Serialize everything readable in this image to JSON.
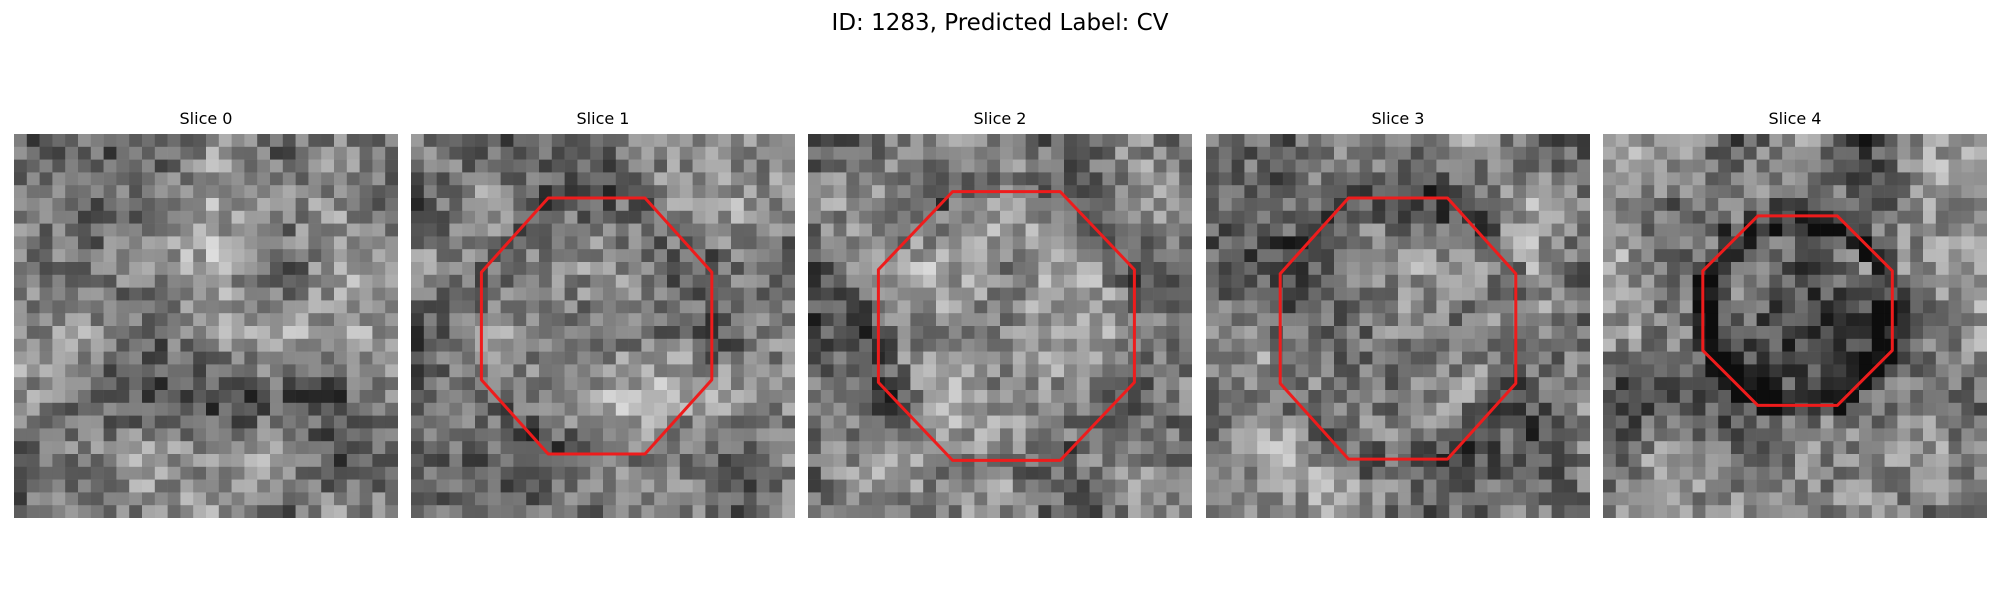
{
  "figure": {
    "title": "ID: 1283, Predicted Label: CV"
  },
  "colors": {
    "contour": "#ee1c1c",
    "background": "#ffffff"
  },
  "panels": [
    {
      "title": "Slice 0",
      "has_contour": false
    },
    {
      "title": "Slice 1",
      "has_contour": true
    },
    {
      "title": "Slice 2",
      "has_contour": true
    },
    {
      "title": "Slice 3",
      "has_contour": true
    },
    {
      "title": "Slice 4",
      "has_contour": true
    }
  ]
}
